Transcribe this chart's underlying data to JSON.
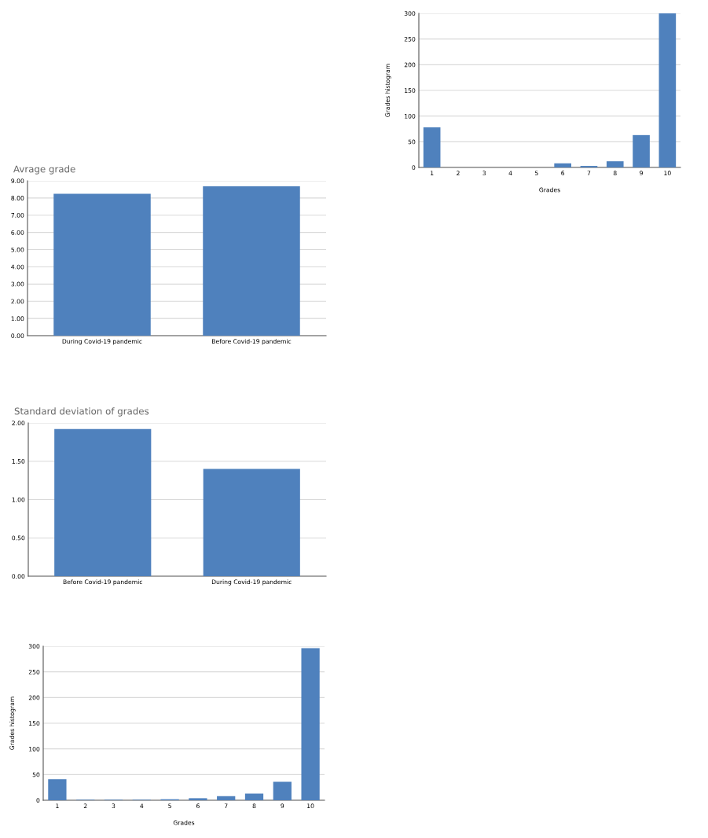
{
  "chart_data": [
    {
      "type": "bar",
      "xlabel": "Grades",
      "ylabel": "Grades histogram",
      "categories": [
        "1",
        "2",
        "3",
        "4",
        "5",
        "6",
        "7",
        "8",
        "9",
        "10"
      ],
      "values": [
        78,
        0,
        0,
        0,
        0,
        8,
        3,
        12,
        63,
        300
      ],
      "color": "#4f81bd",
      "ylim": [
        0,
        300
      ],
      "yticks": [
        0,
        50,
        100,
        150,
        200,
        250,
        300
      ],
      "grid": "y"
    },
    {
      "type": "bar",
      "title": "Avrage grade",
      "categories": [
        "During Covid-19 pandemic",
        "Before Covid-19 pandemic"
      ],
      "values": [
        8.25,
        8.68
      ],
      "color": "#4f81bd",
      "ylim": [
        0,
        9
      ],
      "yticks": [
        {
          "value": 0,
          "label": "0.00"
        },
        {
          "value": 1,
          "label": "1.00"
        },
        {
          "value": 2,
          "label": "2.00"
        },
        {
          "value": 3,
          "label": "3.00"
        },
        {
          "value": 4,
          "label": "4.00"
        },
        {
          "value": 5,
          "label": "5.00"
        },
        {
          "value": 6,
          "label": "6.00"
        },
        {
          "value": 7,
          "label": "7.00"
        },
        {
          "value": 8,
          "label": "8.00"
        },
        {
          "value": 9,
          "label": "9.00"
        }
      ],
      "grid": "y"
    },
    {
      "type": "bar",
      "title": "Standard deviation of grades",
      "categories": [
        "Before Covid-19 pandemic",
        "During Covid-19 pandemic"
      ],
      "values": [
        1.92,
        1.4
      ],
      "color": "#4f81bd",
      "ylim": [
        0,
        2
      ],
      "yticks": [
        {
          "value": 0,
          "label": "0.00"
        },
        {
          "value": 0.5,
          "label": "0.50"
        },
        {
          "value": 1,
          "label": "1.00"
        },
        {
          "value": 1.5,
          "label": "1.50"
        },
        {
          "value": 2,
          "label": "2.00"
        }
      ],
      "grid": "y"
    },
    {
      "type": "bar",
      "xlabel": "Grades",
      "ylabel": "Grades histogram",
      "categories": [
        "1",
        "2",
        "3",
        "4",
        "5",
        "6",
        "7",
        "8",
        "9",
        "10"
      ],
      "values": [
        41,
        1,
        1,
        1,
        2,
        4,
        8,
        13,
        36,
        296
      ],
      "color": "#4f81bd",
      "ylim": [
        0,
        300
      ],
      "yticks": [
        0,
        50,
        100,
        150,
        200,
        250,
        300
      ],
      "grid": "y"
    }
  ]
}
